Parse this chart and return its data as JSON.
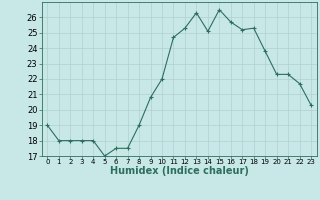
{
  "x": [
    0,
    1,
    2,
    3,
    4,
    5,
    6,
    7,
    8,
    9,
    10,
    11,
    12,
    13,
    14,
    15,
    16,
    17,
    18,
    19,
    20,
    21,
    22,
    23
  ],
  "y": [
    19,
    18,
    18,
    18,
    18,
    17,
    17.5,
    17.5,
    19,
    20.8,
    22,
    24.7,
    25.3,
    26.3,
    25.1,
    26.5,
    25.7,
    25.2,
    25.3,
    23.8,
    22.3,
    22.3,
    21.7,
    20.3
  ],
  "xlabel": "Humidex (Indice chaleur)",
  "ylim": [
    17,
    27
  ],
  "xlim": [
    -0.5,
    23.5
  ],
  "yticks": [
    17,
    18,
    19,
    20,
    21,
    22,
    23,
    24,
    25,
    26
  ],
  "xticks": [
    0,
    1,
    2,
    3,
    4,
    5,
    6,
    7,
    8,
    9,
    10,
    11,
    12,
    13,
    14,
    15,
    16,
    17,
    18,
    19,
    20,
    21,
    22,
    23
  ],
  "xtick_labels": [
    "0",
    "1",
    "2",
    "3",
    "4",
    "5",
    "6",
    "7",
    "8",
    "9",
    "10",
    "11",
    "12",
    "13",
    "14",
    "15",
    "16",
    "17",
    "18",
    "19",
    "20",
    "21",
    "22",
    "23"
  ],
  "line_color": "#2d6e5e",
  "marker": "+",
  "bg_color": "#c8e8e8",
  "grid_color": "#b0d0d0",
  "xlabel_color": "#2d6e5e",
  "xlabel_fontsize": 7,
  "tick_fontsize": 5,
  "ytick_fontsize": 6
}
